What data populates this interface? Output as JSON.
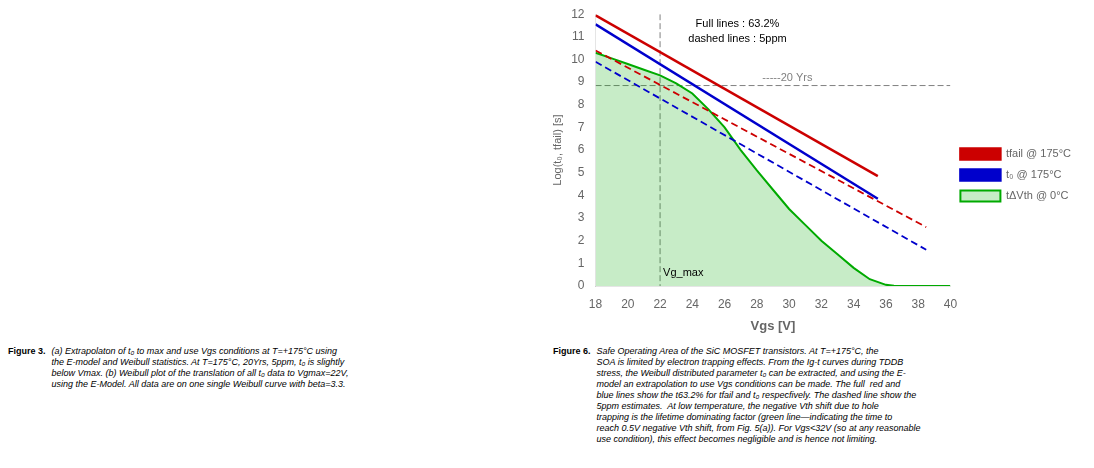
{
  "chart_data": {
    "type": "line",
    "xlabel": "Vgs [V]",
    "ylabel": "Log(t₀, tfail) [s]",
    "xlim": [
      18,
      40
    ],
    "ylim": [
      0,
      12
    ],
    "xticks": [
      18,
      20,
      22,
      24,
      26,
      28,
      30,
      32,
      34,
      36,
      38,
      40
    ],
    "yticks": [
      0,
      1,
      2,
      3,
      4,
      5,
      6,
      7,
      8,
      9,
      10,
      11,
      12
    ],
    "grid": false,
    "legend": "right",
    "annotations": [
      "Full lines : 63.2%\ndashed lines : 5ppm"
    ],
    "reference_lines": [
      {
        "axis": "y",
        "value": 8.85,
        "label": "-----20 Yrs",
        "color": "gray",
        "line_style": "dashed"
      },
      {
        "axis": "x",
        "value": 22,
        "label": "Vg_max",
        "color": "gray",
        "line_style": "dashed"
      }
    ],
    "series": [
      {
        "name": "tfail @ 175°C",
        "color": "#cc0000",
        "line_style": "solid",
        "x": [
          18,
          35.5
        ],
        "values": [
          11.95,
          4.85
        ]
      },
      {
        "name": "t₀ @ 175°C",
        "color": "#0000cc",
        "line_style": "solid",
        "x": [
          18,
          35.5
        ],
        "values": [
          11.55,
          3.85
        ]
      },
      {
        "name": "tfail @ 175°C",
        "color": "#cc0000",
        "line_style": "dashed",
        "x": [
          18,
          38.5
        ],
        "values": [
          10.4,
          2.6
        ]
      },
      {
        "name": "t₀ @ 175°C",
        "color": "#0000cc",
        "line_style": "dashed",
        "x": [
          18,
          38.5
        ],
        "values": [
          9.9,
          1.6
        ]
      },
      {
        "name": "tΔVth @ 0°C",
        "type": "area",
        "color": "#00aa00",
        "line_style": "solid",
        "x": [
          18,
          19,
          20,
          21,
          22,
          23,
          24,
          25,
          26,
          27,
          28,
          29,
          30,
          31,
          32,
          33,
          34,
          35,
          36,
          36.5,
          37,
          38,
          39,
          40
        ],
        "values": [
          10.3,
          10.05,
          9.8,
          9.55,
          9.3,
          8.95,
          8.5,
          7.8,
          7.0,
          6.0,
          5.1,
          4.25,
          3.4,
          2.7,
          2.0,
          1.4,
          0.8,
          0.3,
          0.05,
          0.01,
          0.0,
          0.0,
          0.0,
          0.0
        ]
      }
    ],
    "captions": [
      {
        "bold": "Figure 3.",
        "text": "(a) Extrapolaton of t₀ to max and use Vgs conditions at T=+175°C using\nthe E-model and Weibull statistics. At T=175°C, 20Yrs, 5ppm, t₀ is slightly\nbelow Vmax. (b) Weibull plot of the translation of all t₀ data to Vgmax=22V,\nusing the E-Model. All data are on one single Weibull curve with beta=3.3."
      },
      {
        "bold": "Figure 6.",
        "text": "Safe Operating Area of the SiC MOSFET transistors. At T=+175°C, the\nSOA is limited by electron trapping effects. From the Ig-t curves during TDDB\nstress, the Weibull distributed parameter t₀ can be extracted, and using the E-\nmodel an extrapolation to use Vgs conditions can be made. The full  red and\nblue lines show the t63.2% for tfail and t₀ respecfively. The dashed line show the\n5ppm estimates.  At low temperature, the negative Vth shift due to hole\ntrapping is the lifetime dominating factor (green line—indicating the time to\nreach 0.5V negative Vth shift, from Fig. 5(a)). For Vgs<32V (so at any reasonable\nuse condition), this effect becomes negligible and is hence not limiting."
      }
    ]
  }
}
